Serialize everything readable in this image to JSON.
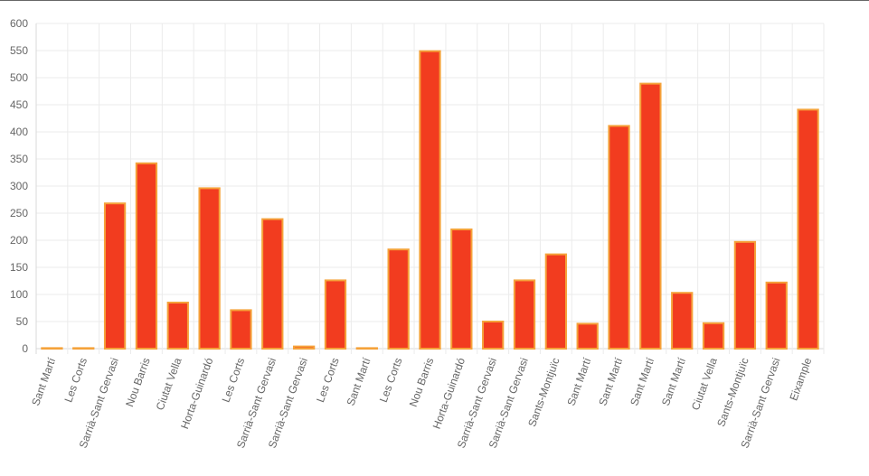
{
  "chart_data": {
    "type": "bar",
    "categories": [
      "Sant Martí",
      "Les Corts",
      "Sarrià-Sant Gervasi",
      "Nou Barris",
      "Ciutat Vella",
      "Horta-Guinardó",
      "Les Corts",
      "Sarrià-Sant Gervasi",
      "Sarrià-Sant Gervasi",
      "Les Corts",
      "Sant Martí",
      "Les Corts",
      "Nou Barris",
      "Horta-Guinardó",
      "Sarrià-Sant Gervasi",
      "Sarrià-Sant Gervasi",
      "Sants-Montjuïc",
      "Sant Martí",
      "Sant Martí",
      "Sant Martí",
      "Sant Martí",
      "Ciutat Vella",
      "Sants-Montjuïc",
      "Sarrià-Sant Gervasi",
      "Eixample"
    ],
    "values": [
      1,
      1,
      268,
      342,
      85,
      296,
      71,
      239,
      4,
      126,
      1,
      183,
      549,
      220,
      50,
      126,
      174,
      46,
      411,
      489,
      103,
      47,
      197,
      122,
      441
    ],
    "ylim": [
      0,
      600
    ],
    "yticks": [
      0,
      50,
      100,
      150,
      200,
      250,
      300,
      350,
      400,
      450,
      500,
      550,
      600
    ],
    "grid": true,
    "legend": "none",
    "colors": {
      "bar_fill": "#f23c1f",
      "bar_border": "#f5a23a",
      "grid": "#ebebeb",
      "axis": "#d9d9d9",
      "tick_text": "#666666"
    }
  }
}
